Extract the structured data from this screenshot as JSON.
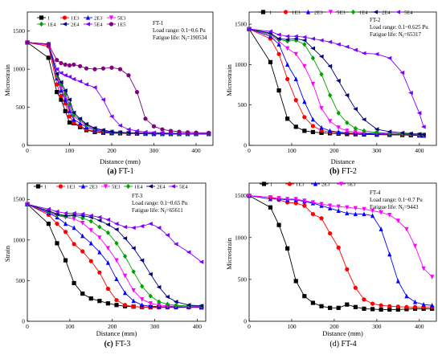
{
  "chart_data": [
    {
      "type": "line",
      "caption_bold": "(a)",
      "caption_rest": " FT-1",
      "xlabel": "Distance (mm)",
      "ylabel": "Microstrain",
      "xlim": [
        0,
        440
      ],
      "ylim": [
        0,
        1750
      ],
      "xticks": [
        0,
        100,
        200,
        300,
        400
      ],
      "yticks": [
        0,
        500,
        1000,
        1500
      ],
      "legend": {
        "placement": "top-left",
        "columns": 4
      },
      "annotation": [
        "FT-1",
        "Load range: 0.1~0.6 Pu",
        "Fatigue life: N",
        "=190534"
      ],
      "x": [
        0,
        50,
        70,
        80,
        90,
        100,
        110,
        125,
        140,
        160,
        180,
        200,
        220,
        240,
        260,
        280,
        300,
        320,
        340,
        360,
        380,
        400,
        430
      ],
      "series": [
        {
          "name": "1",
          "color": "#000000",
          "marker": "square",
          "values": [
            1350,
            1150,
            700,
            600,
            450,
            300,
            290,
            240,
            200,
            175,
            165,
            160,
            158,
            155,
            155,
            152,
            150,
            150,
            150,
            150,
            150,
            150,
            150
          ]
        },
        {
          "name": "1E3",
          "color": "#ff0000",
          "marker": "circle",
          "values": [
            1350,
            1300,
            800,
            650,
            550,
            380,
            300,
            260,
            210,
            185,
            170,
            165,
            160,
            158,
            156,
            154,
            152,
            150,
            150,
            150,
            150,
            150,
            150
          ]
        },
        {
          "name": "2E3",
          "color": "#0000ff",
          "marker": "triangle",
          "values": [
            1350,
            1320,
            880,
            720,
            600,
            450,
            340,
            290,
            240,
            200,
            180,
            170,
            165,
            160,
            158,
            155,
            153,
            152,
            150,
            150,
            150,
            150,
            150
          ]
        },
        {
          "name": "5E3",
          "color": "#ff00ff",
          "marker": "triangle-down",
          "values": [
            1350,
            1320,
            900,
            760,
            650,
            500,
            380,
            320,
            260,
            215,
            190,
            175,
            168,
            162,
            160,
            157,
            155,
            153,
            152,
            151,
            150,
            150,
            150
          ]
        },
        {
          "name": "1E4",
          "color": "#00a000",
          "marker": "diamond",
          "values": [
            1350,
            1330,
            920,
            800,
            680,
            540,
            400,
            340,
            270,
            220,
            195,
            178,
            170,
            165,
            162,
            158,
            156,
            154,
            153,
            152,
            151,
            150,
            150
          ]
        },
        {
          "name": "2E4",
          "color": "#000080",
          "marker": "triangle-left",
          "values": [
            1350,
            1330,
            940,
            830,
            720,
            600,
            430,
            350,
            280,
            225,
            200,
            180,
            172,
            167,
            163,
            160,
            157,
            155,
            154,
            152,
            151,
            150,
            150
          ]
        },
        {
          "name": "5E4",
          "color": "#8000ff",
          "marker": "triangle-left",
          "values": [
            1350,
            1330,
            1000,
            950,
            920,
            900,
            870,
            840,
            800,
            760,
            600,
            380,
            260,
            210,
            190,
            175,
            168,
            163,
            160,
            158,
            156,
            155,
            155
          ]
        },
        {
          "name": "1E5",
          "color": "#800080",
          "marker": "circle",
          "values": [
            1350,
            1330,
            1120,
            1080,
            1060,
            1050,
            1060,
            1040,
            1010,
            1000,
            1010,
            1020,
            1000,
            920,
            700,
            350,
            250,
            210,
            190,
            180,
            172,
            168,
            165
          ]
        }
      ]
    },
    {
      "type": "line",
      "caption_bold": "(b)",
      "caption_rest": " FT-2",
      "xlabel": "Distance",
      "ylabel": "Microstrain",
      "xlim": [
        0,
        440
      ],
      "ylim": [
        0,
        1650
      ],
      "xticks": [
        0,
        100,
        200,
        300,
        400
      ],
      "yticks": [
        0,
        500,
        1000,
        1500
      ],
      "legend": {
        "placement": "top",
        "columns": 7
      },
      "annotation": [
        "FT-2",
        "Load range: 0.1~0.625 Pu",
        "Fatigue life: N",
        "=65317"
      ],
      "x": [
        0,
        50,
        70,
        90,
        110,
        130,
        150,
        170,
        190,
        210,
        230,
        250,
        270,
        300,
        330,
        360,
        380,
        400,
        410
      ],
      "series": [
        {
          "name": "1",
          "color": "#000000",
          "marker": "square",
          "values": [
            1440,
            1030,
            680,
            330,
            230,
            180,
            165,
            155,
            150,
            145,
            140,
            138,
            135,
            132,
            130,
            128,
            125,
            122,
            120
          ]
        },
        {
          "name": "1E3",
          "color": "#ff0000",
          "marker": "circle",
          "values": [
            1440,
            1320,
            1130,
            820,
            560,
            350,
            240,
            185,
            165,
            155,
            150,
            145,
            142,
            138,
            135,
            132,
            130,
            125,
            122
          ]
        },
        {
          "name": "2E3",
          "color": "#0000ff",
          "marker": "triangle",
          "values": [
            1440,
            1350,
            1250,
            1000,
            820,
            540,
            320,
            220,
            180,
            165,
            155,
            150,
            146,
            142,
            138,
            135,
            132,
            128,
            125
          ]
        },
        {
          "name": "5E3",
          "color": "#ff00ff",
          "marker": "triangle-down",
          "values": [
            1440,
            1370,
            1290,
            1200,
            1130,
            980,
            760,
            460,
            300,
            220,
            180,
            165,
            158,
            150,
            145,
            140,
            136,
            132,
            128
          ]
        },
        {
          "name": "1E4",
          "color": "#00a000",
          "marker": "diamond",
          "values": [
            1440,
            1380,
            1310,
            1290,
            1300,
            1250,
            1080,
            880,
            620,
            400,
            280,
            210,
            180,
            160,
            150,
            145,
            140,
            135,
            130
          ]
        },
        {
          "name": "2E4",
          "color": "#000080",
          "marker": "triangle-left",
          "values": [
            1440,
            1390,
            1320,
            1310,
            1320,
            1300,
            1200,
            1100,
            980,
            800,
            620,
            450,
            320,
            200,
            170,
            155,
            145,
            140,
            135
          ]
        },
        {
          "name": "5E4",
          "color": "#8000ff",
          "marker": "triangle-left",
          "values": [
            1440,
            1410,
            1370,
            1350,
            1350,
            1340,
            1320,
            1300,
            1280,
            1250,
            1220,
            1180,
            1140,
            1130,
            1080,
            900,
            650,
            400,
            230
          ]
        }
      ]
    },
    {
      "type": "line",
      "caption_bold": "(c)",
      "caption_rest": " FT-3",
      "xlabel": "Distance (mm)",
      "ylabel": "Strain",
      "xlim": [
        0,
        420
      ],
      "ylim": [
        0,
        1700
      ],
      "xticks": [
        0,
        100,
        200,
        300,
        400
      ],
      "yticks": [
        0,
        500,
        1000,
        1500
      ],
      "legend": {
        "placement": "top",
        "columns": 7
      },
      "annotation": [
        "FT-3",
        "Load range: 0.1~0.65 Pu",
        "Fatigue life: N",
        "=65611"
      ],
      "x": [
        0,
        50,
        70,
        90,
        110,
        130,
        150,
        170,
        190,
        210,
        230,
        250,
        270,
        290,
        310,
        330,
        350,
        380,
        410
      ],
      "series": [
        {
          "name": "1",
          "color": "#000000",
          "marker": "square",
          "values": [
            1440,
            1200,
            960,
            750,
            470,
            340,
            280,
            250,
            220,
            200,
            185,
            180,
            175,
            175,
            175,
            175,
            175,
            175,
            170
          ]
        },
        {
          "name": "1E3",
          "color": "#ff0000",
          "marker": "circle",
          "values": [
            1440,
            1310,
            1200,
            1100,
            950,
            860,
            740,
            600,
            400,
            260,
            200,
            180,
            175,
            170,
            170,
            170,
            170,
            170,
            170
          ]
        },
        {
          "name": "2E3",
          "color": "#0000ff",
          "marker": "triangle",
          "values": [
            1440,
            1330,
            1280,
            1200,
            1150,
            1050,
            960,
            850,
            720,
            520,
            350,
            250,
            200,
            185,
            180,
            178,
            175,
            175,
            175
          ]
        },
        {
          "name": "5E3",
          "color": "#ff00ff",
          "marker": "triangle-down",
          "values": [
            1440,
            1340,
            1300,
            1280,
            1260,
            1210,
            1120,
            1030,
            900,
            750,
            560,
            380,
            270,
            220,
            200,
            190,
            185,
            180,
            180
          ]
        },
        {
          "name": "1E4",
          "color": "#00a000",
          "marker": "diamond",
          "values": [
            1440,
            1350,
            1310,
            1290,
            1300,
            1270,
            1230,
            1160,
            1090,
            960,
            800,
            610,
            430,
            310,
            240,
            210,
            195,
            190,
            185
          ]
        },
        {
          "name": "2E4",
          "color": "#000080",
          "marker": "triangle-left",
          "values": [
            1440,
            1360,
            1320,
            1300,
            1310,
            1300,
            1280,
            1240,
            1190,
            1130,
            1020,
            900,
            750,
            580,
            420,
            300,
            240,
            200,
            190
          ]
        },
        {
          "name": "5E4",
          "color": "#8000ff",
          "marker": "triangle-left",
          "values": [
            1440,
            1380,
            1350,
            1330,
            1330,
            1320,
            1300,
            1280,
            1250,
            1200,
            1160,
            1150,
            1170,
            1200,
            1150,
            1060,
            950,
            850,
            730
          ]
        }
      ]
    },
    {
      "type": "line",
      "caption_bold": "",
      "caption_rest": "(d) FT-4",
      "xlabel": "Distance (mm)",
      "ylabel": "Microstrain",
      "xlim": [
        0,
        440
      ],
      "ylim": [
        0,
        1650
      ],
      "xticks": [
        0,
        100,
        200,
        300,
        400
      ],
      "yticks": [
        0,
        500,
        1000,
        1500
      ],
      "legend": {
        "placement": "top",
        "columns": 4
      },
      "annotation": [
        "FT-4",
        "Load range: 0.1~0.7 Pu",
        "Fatigue life: N",
        "=9443"
      ],
      "x": [
        0,
        50,
        70,
        90,
        110,
        130,
        150,
        170,
        190,
        210,
        230,
        250,
        270,
        290,
        310,
        330,
        350,
        370,
        390,
        410,
        430
      ],
      "series": [
        {
          "name": "1",
          "color": "#000000",
          "marker": "square",
          "values": [
            1500,
            1360,
            1150,
            870,
            480,
            300,
            220,
            180,
            160,
            160,
            200,
            170,
            150,
            145,
            140,
            140,
            140,
            145,
            150,
            150,
            150
          ]
        },
        {
          "name": "1E3",
          "color": "#ff0000",
          "marker": "circle",
          "values": [
            1500,
            1480,
            1450,
            1420,
            1410,
            1380,
            1280,
            1230,
            1050,
            880,
            620,
            400,
            260,
            210,
            190,
            180,
            175,
            170,
            170,
            170,
            170
          ]
        },
        {
          "name": "2E3",
          "color": "#0000ff",
          "marker": "triangle",
          "values": [
            1500,
            1460,
            1460,
            1450,
            1450,
            1430,
            1410,
            1380,
            1350,
            1320,
            1290,
            1280,
            1280,
            1260,
            1100,
            800,
            480,
            300,
            230,
            200,
            190
          ]
        },
        {
          "name": "5E3",
          "color": "#ff00ff",
          "marker": "triangle-down",
          "values": [
            1500,
            1480,
            1470,
            1460,
            1460,
            1440,
            1420,
            1400,
            1380,
            1370,
            1360,
            1350,
            1340,
            1320,
            1300,
            1270,
            1200,
            1100,
            900,
            630,
            530
          ]
        }
      ]
    }
  ]
}
